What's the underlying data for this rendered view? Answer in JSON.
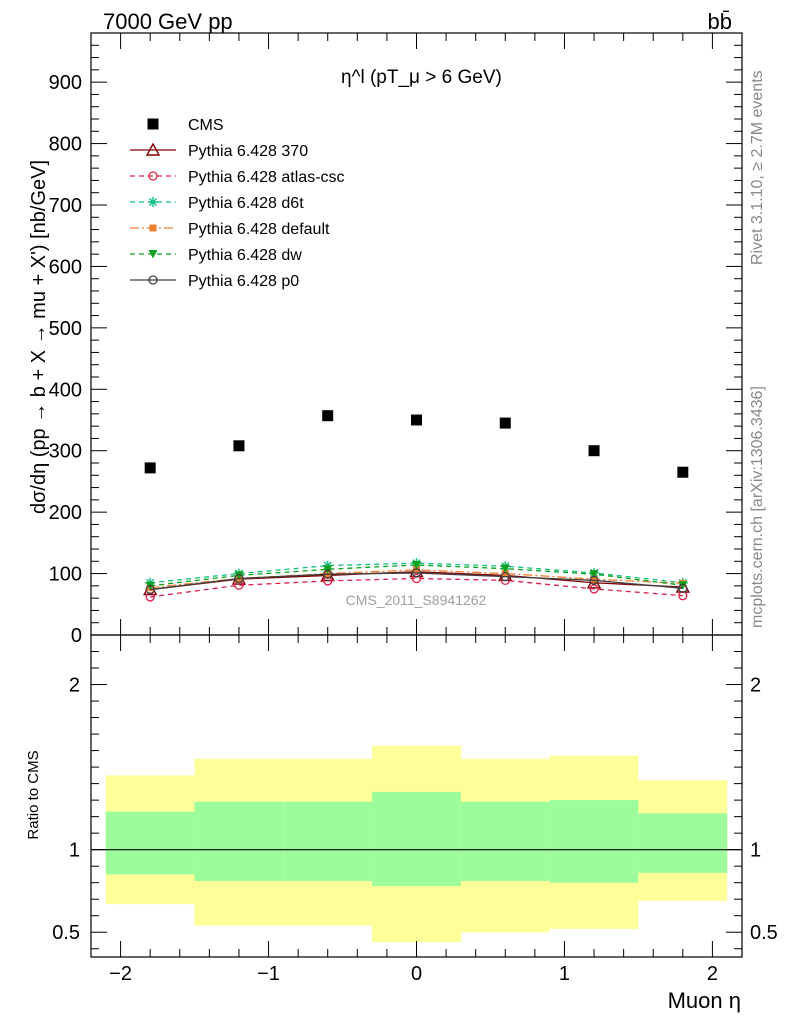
{
  "header": {
    "left": "7000 GeV pp",
    "right": "bb̄"
  },
  "side": {
    "rivet": "Rivet 3.1.10, ≥ 2.7M events",
    "mcplots": "mcplots.cern.ch [arXiv:1306.3436]"
  },
  "colors": {
    "cms": "#000000",
    "p370": "#800000",
    "atlas": "#e0204a",
    "d6t": "#10c080",
    "default": "#f08030",
    "dw": "#10a020",
    "p0": "#404040",
    "band_inner": "#9cfc9c",
    "band_outer": "#ffff99"
  },
  "chart_data": [
    {
      "type": "scatter",
      "title": "η^l (pT_μ > 6 GeV)",
      "ylabel": "dσ/dη (pp → b + X → mu + X') [nb/GeV]",
      "ylim": [
        0,
        980
      ],
      "yticks": [
        "0",
        "100",
        "200",
        "300",
        "400",
        "500",
        "600",
        "700",
        "800",
        "900"
      ],
      "xlim": [
        -2.2,
        2.2
      ],
      "watermark": "CMS_2011_S8941262",
      "legend_position": "top-left",
      "x": [
        -1.8,
        -1.2,
        -0.6,
        0.0,
        0.6,
        1.2,
        1.8
      ],
      "series": [
        {
          "name": "CMS",
          "key": "cms",
          "marker": "square",
          "dash": "",
          "values": [
            272,
            308,
            357,
            350,
            345,
            300,
            265
          ]
        },
        {
          "name": "Pythia 6.428 370",
          "key": "p370",
          "marker": "triangle-open",
          "dash": "",
          "values": [
            74,
            91,
            97,
            103,
            97,
            85,
            78
          ]
        },
        {
          "name": "Pythia 6.428 atlas-csc",
          "key": "atlas",
          "marker": "circle-open",
          "dash": "5,4",
          "values": [
            62,
            81,
            88,
            92,
            89,
            75,
            64
          ]
        },
        {
          "name": "Pythia 6.428 d6t",
          "key": "d6t",
          "marker": "star",
          "dash": "5,4",
          "values": [
            85,
            100,
            113,
            117,
            112,
            101,
            85
          ]
        },
        {
          "name": "Pythia 6.428 default",
          "key": "default",
          "marker": "square-small",
          "dash": "9,3,2,3",
          "values": [
            77,
            92,
            100,
            106,
            100,
            91,
            84
          ]
        },
        {
          "name": "Pythia 6.428 dw",
          "key": "dw",
          "marker": "triangle-down",
          "dash": "5,4",
          "values": [
            80,
            97,
            107,
            114,
            108,
            99,
            81
          ]
        },
        {
          "name": "Pythia 6.428 p0",
          "key": "p0",
          "marker": "circle-open",
          "dash": "",
          "values": [
            74,
            92,
            99,
            101,
            95,
            89,
            76
          ]
        }
      ]
    },
    {
      "type": "area",
      "ylabel": "Ratio to CMS",
      "xlabel": "Muon η",
      "ylim": [
        0.35,
        2.3
      ],
      "yticks": [
        "0.5",
        "1",
        "2"
      ],
      "xticks": [
        "−2",
        "−1",
        "0",
        "1",
        "2"
      ],
      "bins": [
        [
          -2.1,
          -1.5
        ],
        [
          -1.5,
          -0.9
        ],
        [
          -0.9,
          -0.3
        ],
        [
          -0.3,
          0.3
        ],
        [
          0.3,
          0.9
        ],
        [
          0.9,
          1.5
        ],
        [
          1.5,
          2.1
        ]
      ],
      "band_inner": [
        [
          0.85,
          1.23
        ],
        [
          0.81,
          1.29
        ],
        [
          0.81,
          1.29
        ],
        [
          0.78,
          1.35
        ],
        [
          0.81,
          1.29
        ],
        [
          0.8,
          1.3
        ],
        [
          0.86,
          1.22
        ]
      ],
      "band_outer": [
        [
          0.67,
          1.45
        ],
        [
          0.54,
          1.55
        ],
        [
          0.54,
          1.55
        ],
        [
          0.44,
          1.63
        ],
        [
          0.5,
          1.55
        ],
        [
          0.52,
          1.57
        ],
        [
          0.69,
          1.42
        ]
      ],
      "reference": 1
    }
  ]
}
